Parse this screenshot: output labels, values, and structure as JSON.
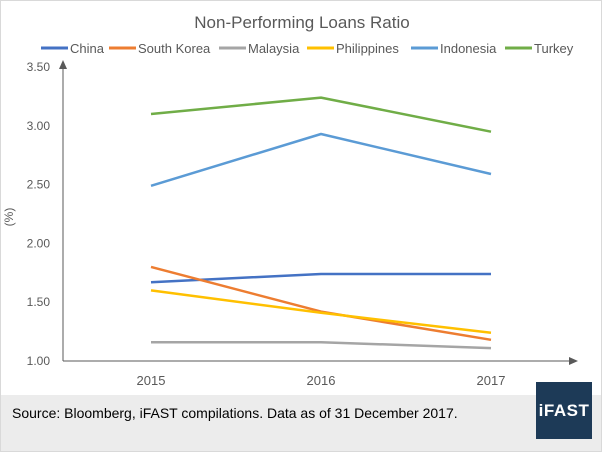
{
  "chart_data": {
    "type": "line",
    "title": "Non-Performing Loans Ratio",
    "xlabel": "",
    "ylabel": "(%)",
    "categories": [
      "2015",
      "2016",
      "2017"
    ],
    "ylim": [
      1.0,
      3.5
    ],
    "yticks": [
      "1.00",
      "1.50",
      "2.00",
      "2.50",
      "3.00",
      "3.50"
    ],
    "grid": false,
    "legend_position": "top",
    "series": [
      {
        "name": "China",
        "color": "#4472c4",
        "values": [
          1.67,
          1.74,
          1.74
        ]
      },
      {
        "name": "South Korea",
        "color": "#ed7d31",
        "values": [
          1.8,
          1.42,
          1.18
        ]
      },
      {
        "name": "Malaysia",
        "color": "#a5a5a5",
        "values": [
          1.16,
          1.16,
          1.11
        ]
      },
      {
        "name": "Philippines",
        "color": "#ffc000",
        "values": [
          1.6,
          1.41,
          1.24
        ]
      },
      {
        "name": "Indonesia",
        "color": "#5b9bd5",
        "values": [
          2.49,
          2.93,
          2.59
        ]
      },
      {
        "name": "Turkey",
        "color": "#70ad47",
        "values": [
          3.1,
          3.24,
          2.95
        ]
      }
    ]
  },
  "footer": {
    "source": "Source: Bloomberg, iFAST compilations. Data as of 31 December 2017.",
    "logo": "iFAST"
  }
}
